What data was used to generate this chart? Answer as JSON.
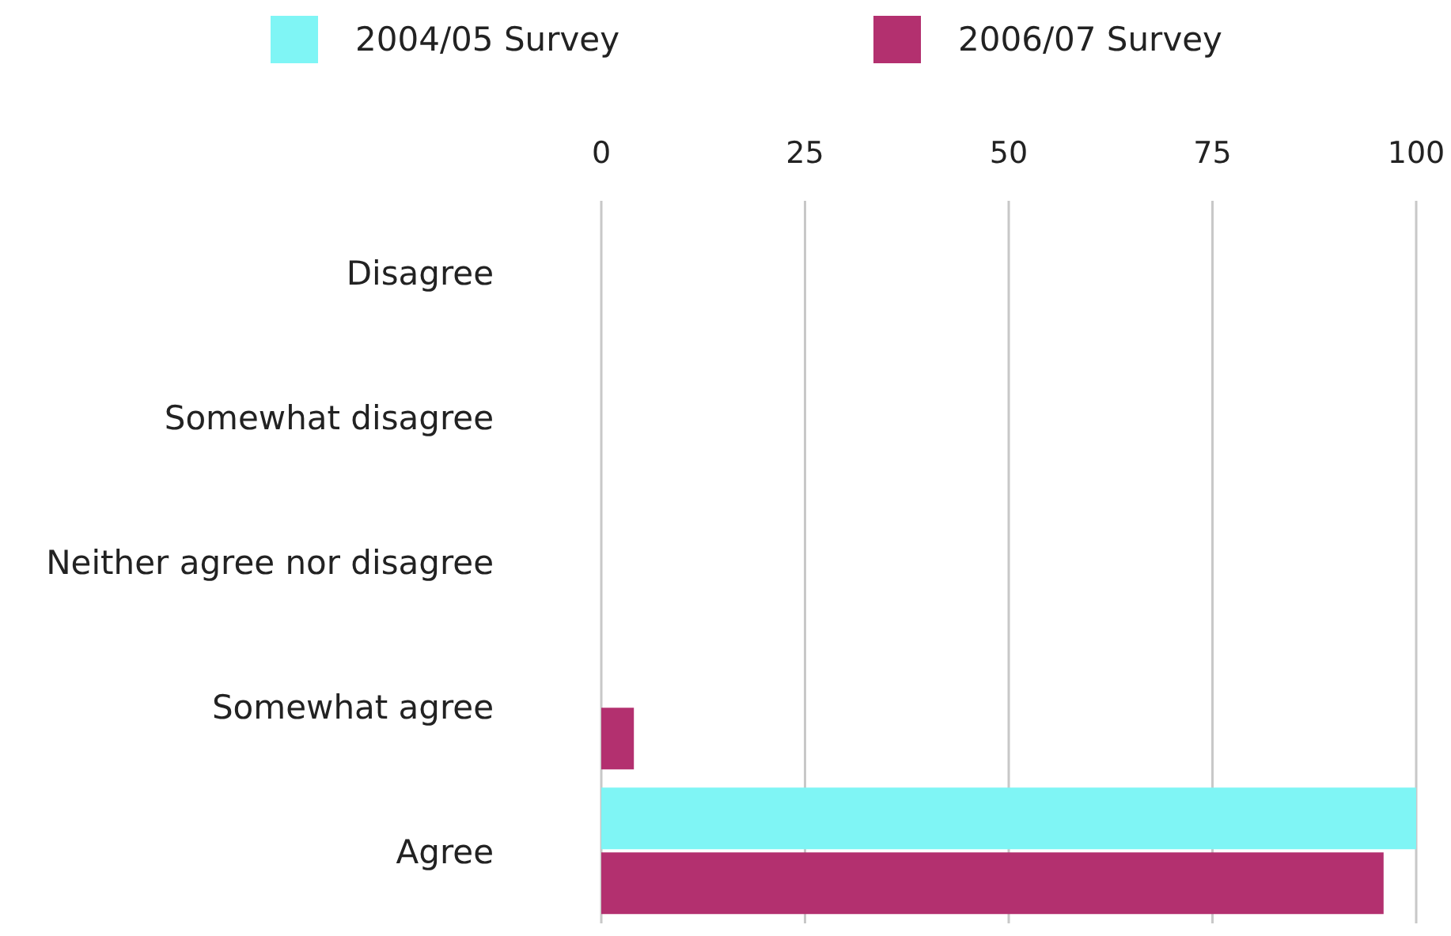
{
  "chart_data": {
    "type": "bar",
    "orientation": "horizontal",
    "categories": [
      "Disagree",
      "Somewhat disagree",
      "Neither agree nor disagree",
      "Somewhat agree",
      "Agree"
    ],
    "series": [
      {
        "name": "2004/05 Survey",
        "color": "#7ff5f5",
        "values": [
          0,
          0,
          0,
          0,
          100
        ]
      },
      {
        "name": "2006/07 Survey",
        "color": "#b3306f",
        "values": [
          0,
          0,
          0,
          4,
          96
        ]
      }
    ],
    "xlim": [
      0,
      100
    ],
    "xticks": [
      0,
      25,
      50,
      75,
      100
    ],
    "grid": "x",
    "legend": "top"
  }
}
